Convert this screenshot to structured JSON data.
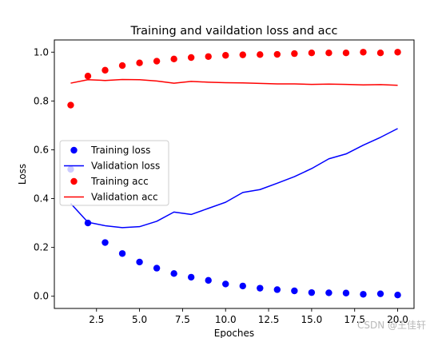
{
  "chart_data": {
    "type": "line",
    "title": "Training and vaildation loss and acc",
    "xlabel": "Epoches",
    "ylabel": "Loss",
    "xlim": [
      0.05,
      20.95
    ],
    "ylim": [
      -0.05,
      1.05
    ],
    "xticks": [
      2.5,
      5.0,
      7.5,
      10.0,
      12.5,
      15.0,
      17.5,
      20.0
    ],
    "xtick_labels": [
      "2.5",
      "5.0",
      "7.5",
      "10.0",
      "12.5",
      "15.0",
      "17.5",
      "20.0"
    ],
    "yticks": [
      0.0,
      0.2,
      0.4,
      0.6,
      0.8,
      1.0
    ],
    "ytick_labels": [
      "0.0",
      "0.2",
      "0.4",
      "0.6",
      "0.8",
      "1.0"
    ],
    "grid": false,
    "legend_position": "center-left",
    "x": [
      1,
      2,
      3,
      4,
      5,
      6,
      7,
      8,
      9,
      10,
      11,
      12,
      13,
      14,
      15,
      16,
      17,
      18,
      19,
      20
    ],
    "series": [
      {
        "name": "Training loss",
        "style": "scatter",
        "color": "#0000ff",
        "values": [
          0.52,
          0.3,
          0.22,
          0.175,
          0.14,
          0.115,
          0.093,
          0.078,
          0.065,
          0.05,
          0.042,
          0.033,
          0.027,
          0.022,
          0.015,
          0.014,
          0.013,
          0.008,
          0.01,
          0.005
        ]
      },
      {
        "name": "Validation loss",
        "style": "line",
        "color": "#0000ff",
        "values": [
          0.38,
          0.303,
          0.289,
          0.281,
          0.285,
          0.307,
          0.345,
          0.335,
          0.36,
          0.385,
          0.425,
          0.437,
          0.463,
          0.49,
          0.523,
          0.563,
          0.583,
          0.619,
          0.651,
          0.687
        ]
      },
      {
        "name": "Training acc",
        "style": "scatter",
        "color": "#ff0000",
        "values": [
          0.783,
          0.902,
          0.926,
          0.945,
          0.956,
          0.963,
          0.972,
          0.978,
          0.982,
          0.987,
          0.989,
          0.99,
          0.991,
          0.994,
          0.997,
          0.997,
          0.997,
          1.0,
          0.997,
          1.0
        ]
      },
      {
        "name": "Validation acc",
        "style": "line",
        "color": "#ff0000",
        "values": [
          0.873,
          0.887,
          0.884,
          0.888,
          0.887,
          0.882,
          0.873,
          0.88,
          0.877,
          0.875,
          0.874,
          0.872,
          0.87,
          0.87,
          0.868,
          0.869,
          0.868,
          0.866,
          0.867,
          0.864
        ]
      }
    ]
  },
  "watermark": "CSDN @王佳轩"
}
